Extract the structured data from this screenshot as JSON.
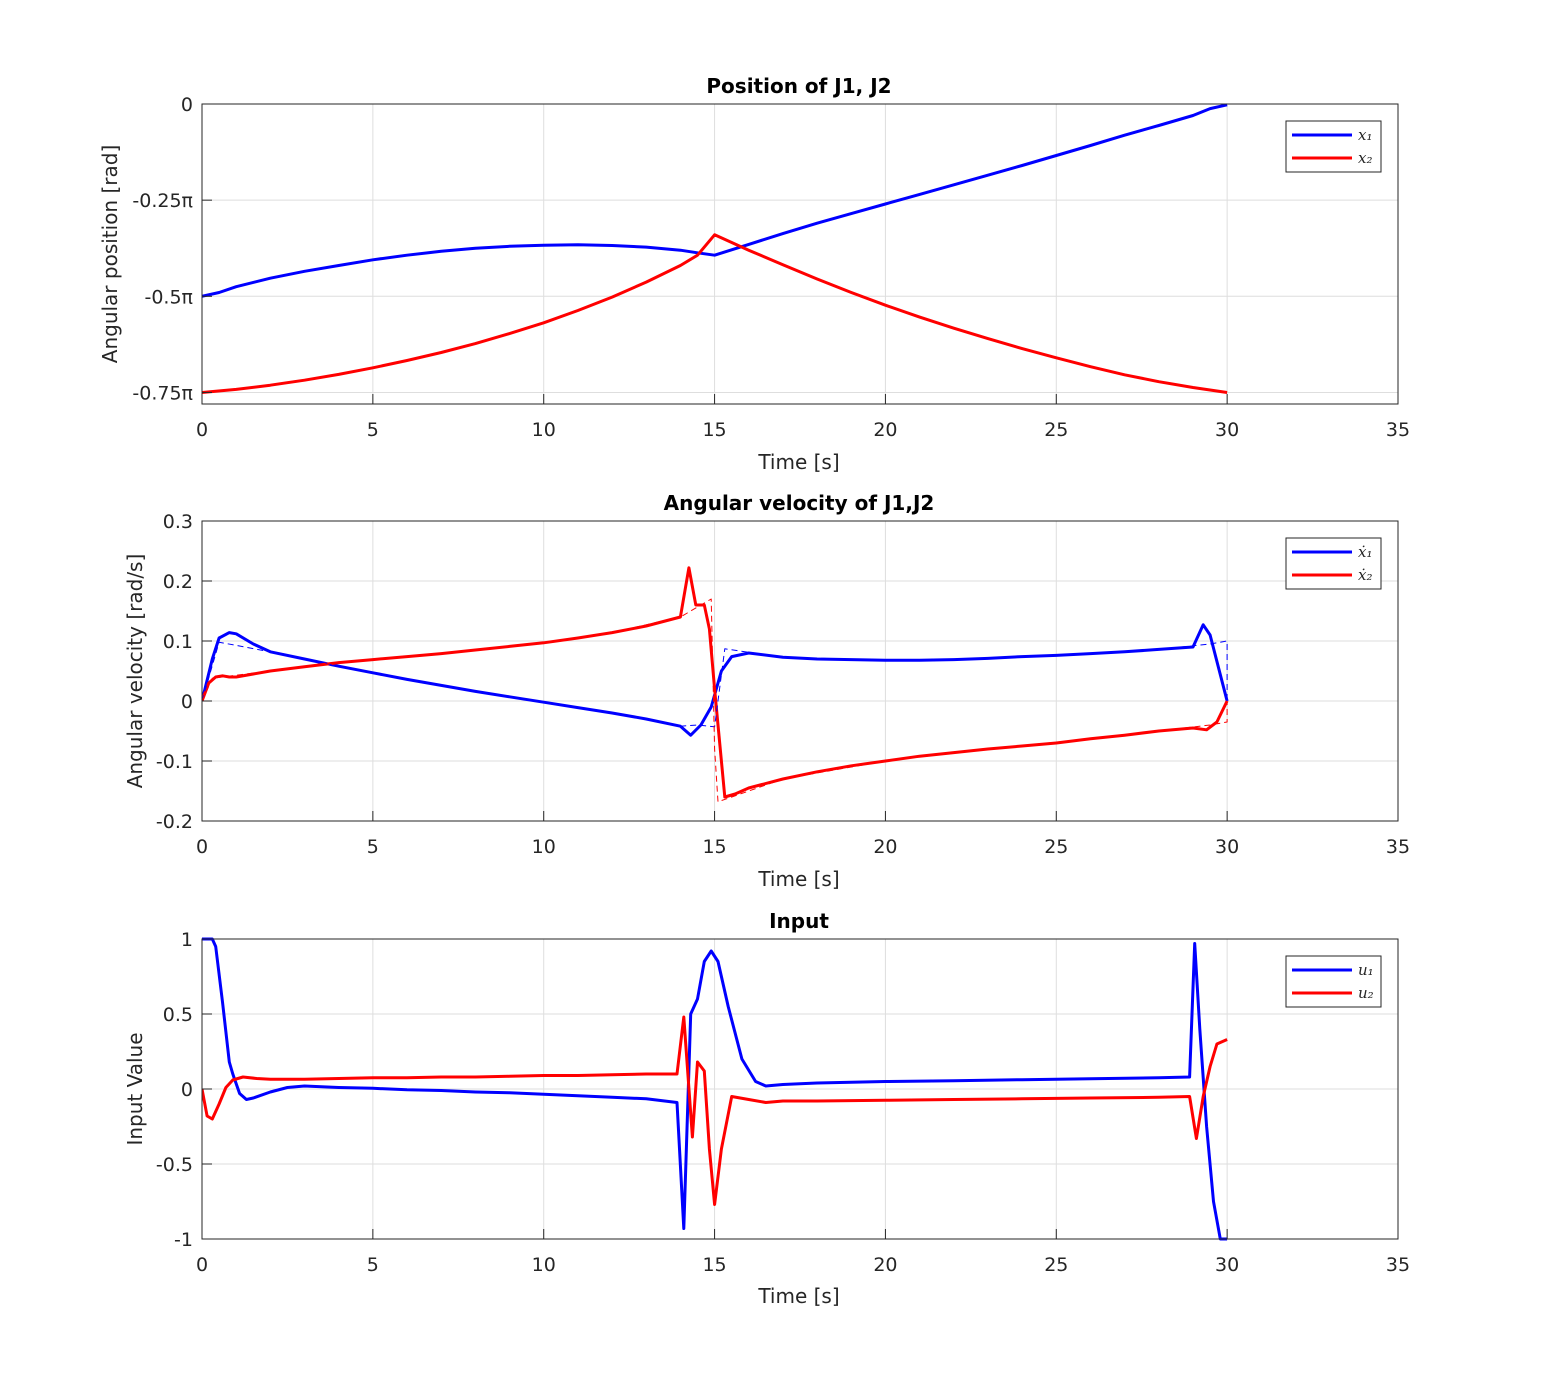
{
  "chart_data": [
    {
      "type": "line",
      "title": "Position of J1, J2",
      "xlabel": "Time [s]",
      "ylabel": "Angular position [rad]",
      "xlim": [
        0,
        35
      ],
      "ylim": [
        -0.78,
        0
      ],
      "y_unit": "pi",
      "grid": true,
      "legend_position": "top-right",
      "xticks": [
        0,
        5,
        10,
        15,
        20,
        25,
        30,
        35
      ],
      "yticks": [
        {
          "value": 0,
          "label": "0"
        },
        {
          "value": -0.25,
          "label": "-0.25π"
        },
        {
          "value": -0.5,
          "label": "-0.5π"
        },
        {
          "value": -0.75,
          "label": "-0.75π"
        }
      ],
      "series": [
        {
          "name": "x₁",
          "color": "#0000ff",
          "style": "solid",
          "x": [
            0,
            0.5,
            1,
            2,
            3,
            4,
            5,
            6,
            7,
            8,
            9,
            10,
            11,
            12,
            13,
            14,
            14.5,
            15,
            16,
            17,
            18,
            19,
            20,
            21,
            22,
            23,
            24,
            25,
            26,
            27,
            28,
            29,
            29.5,
            30
          ],
          "y": [
            -0.5,
            -0.49,
            -0.475,
            -0.453,
            -0.435,
            -0.42,
            -0.405,
            -0.393,
            -0.383,
            -0.375,
            -0.37,
            -0.367,
            -0.366,
            -0.368,
            -0.372,
            -0.38,
            -0.387,
            -0.393,
            -0.365,
            -0.337,
            -0.31,
            -0.285,
            -0.26,
            -0.235,
            -0.21,
            -0.185,
            -0.16,
            -0.134,
            -0.108,
            -0.081,
            -0.056,
            -0.03,
            -0.012,
            -0.002
          ]
        },
        {
          "name": "x₂",
          "color": "#ff0000",
          "style": "solid",
          "x": [
            0,
            1,
            2,
            3,
            4,
            5,
            6,
            7,
            8,
            9,
            10,
            11,
            12,
            13,
            14,
            14.5,
            15,
            15.5,
            16,
            17,
            18,
            19,
            20,
            21,
            22,
            23,
            24,
            25,
            26,
            27,
            28,
            29,
            30
          ],
          "y": [
            -0.75,
            -0.742,
            -0.731,
            -0.718,
            -0.703,
            -0.686,
            -0.667,
            -0.646,
            -0.623,
            -0.597,
            -0.569,
            -0.537,
            -0.502,
            -0.463,
            -0.42,
            -0.393,
            -0.34,
            -0.36,
            -0.38,
            -0.418,
            -0.455,
            -0.49,
            -0.523,
            -0.554,
            -0.583,
            -0.61,
            -0.636,
            -0.66,
            -0.683,
            -0.704,
            -0.722,
            -0.737,
            -0.75
          ]
        }
      ]
    },
    {
      "type": "line",
      "title": "Angular velocity of J1,J2",
      "xlabel": "Time [s]",
      "ylabel": "Angular velocity [rad/s]",
      "xlim": [
        0,
        35
      ],
      "ylim": [
        -0.2,
        0.3
      ],
      "grid": true,
      "legend_position": "top-right",
      "xticks": [
        0,
        5,
        10,
        15,
        20,
        25,
        30,
        35
      ],
      "yticks": [
        {
          "value": 0.3,
          "label": "0.3"
        },
        {
          "value": 0.2,
          "label": "0.2"
        },
        {
          "value": 0.1,
          "label": "0.1"
        },
        {
          "value": 0,
          "label": "0"
        },
        {
          "value": -0.1,
          "label": "-0.1"
        },
        {
          "value": -0.2,
          "label": "-0.2"
        }
      ],
      "series": [
        {
          "name": "ẋ₁",
          "color": "#0000ff",
          "style": "solid",
          "x": [
            0,
            0.3,
            0.5,
            0.8,
            1,
            1.5,
            2,
            3,
            4,
            5,
            6,
            7,
            8,
            9,
            10,
            11,
            12,
            13,
            14,
            14.3,
            14.6,
            14.9,
            15.2,
            15.5,
            16,
            17,
            18,
            19,
            20,
            21,
            22,
            23,
            24,
            25,
            26,
            27,
            28,
            29,
            29.3,
            29.5,
            30
          ],
          "y": [
            0,
            0.07,
            0.105,
            0.114,
            0.112,
            0.095,
            0.082,
            0.07,
            0.058,
            0.047,
            0.036,
            0.026,
            0.016,
            0.007,
            -0.002,
            -0.011,
            -0.02,
            -0.03,
            -0.042,
            -0.057,
            -0.04,
            -0.01,
            0.05,
            0.074,
            0.08,
            0.073,
            0.07,
            0.069,
            0.068,
            0.068,
            0.069,
            0.071,
            0.074,
            0.076,
            0.079,
            0.082,
            0.086,
            0.09,
            0.127,
            0.11,
            0
          ]
        },
        {
          "name": "ẋ₂",
          "color": "#ff0000",
          "style": "solid",
          "x": [
            0,
            0.2,
            0.4,
            0.6,
            0.8,
            1,
            2,
            3,
            4,
            5,
            6,
            7,
            8,
            9,
            10,
            11,
            12,
            13,
            14,
            14.25,
            14.45,
            14.7,
            14.85,
            15,
            15.3,
            15.6,
            16,
            17,
            18,
            19,
            20,
            21,
            22,
            23,
            24,
            25,
            26,
            27,
            28,
            29,
            29.4,
            29.7,
            30
          ],
          "y": [
            0,
            0.03,
            0.04,
            0.042,
            0.04,
            0.04,
            0.05,
            0.057,
            0.064,
            0.069,
            0.074,
            0.079,
            0.085,
            0.091,
            0.097,
            0.105,
            0.114,
            0.125,
            0.14,
            0.222,
            0.16,
            0.16,
            0.12,
            0.02,
            -0.16,
            -0.155,
            -0.145,
            -0.13,
            -0.118,
            -0.108,
            -0.1,
            -0.092,
            -0.086,
            -0.08,
            -0.075,
            -0.07,
            -0.063,
            -0.057,
            -0.05,
            -0.045,
            -0.048,
            -0.035,
            0
          ]
        },
        {
          "name": "",
          "color": "#0000ff",
          "style": "dashed",
          "x": [
            0,
            0.5,
            2,
            4,
            6,
            8,
            10,
            12,
            14,
            14.5,
            15,
            15.3,
            17,
            20,
            23,
            26,
            28,
            29.5,
            30,
            30
          ],
          "y": [
            0,
            0.098,
            0.082,
            0.058,
            0.036,
            0.016,
            -0.002,
            -0.02,
            -0.042,
            -0.04,
            -0.043,
            0.087,
            0.073,
            0.068,
            0.071,
            0.079,
            0.086,
            0.095,
            0.1,
            0
          ]
        },
        {
          "name": "",
          "color": "#ff0000",
          "style": "dashed",
          "x": [
            0,
            0.3,
            2,
            4,
            6,
            8,
            10,
            12,
            14,
            14.3,
            14.9,
            15,
            15.1,
            17,
            20,
            23,
            26,
            28,
            29.5,
            30,
            30
          ],
          "y": [
            0,
            0.038,
            0.05,
            0.064,
            0.074,
            0.085,
            0.097,
            0.114,
            0.14,
            0.15,
            0.17,
            -0.08,
            -0.168,
            -0.13,
            -0.1,
            -0.08,
            -0.063,
            -0.05,
            -0.04,
            -0.035,
            0
          ]
        }
      ]
    },
    {
      "type": "line",
      "title": "Input",
      "xlabel": "Time [s]",
      "ylabel": "Input Value",
      "xlim": [
        0,
        35
      ],
      "ylim": [
        -1,
        1
      ],
      "grid": true,
      "legend_position": "top-right",
      "xticks": [
        0,
        5,
        10,
        15,
        20,
        25,
        30,
        35
      ],
      "yticks": [
        {
          "value": 1,
          "label": "1"
        },
        {
          "value": 0.5,
          "label": "0.5"
        },
        {
          "value": 0,
          "label": "0"
        },
        {
          "value": -0.5,
          "label": "-0.5"
        },
        {
          "value": -1,
          "label": "-1"
        }
      ],
      "series": [
        {
          "name": "u₁",
          "color": "#0000ff",
          "style": "solid",
          "x": [
            0,
            0.3,
            0.4,
            0.6,
            0.8,
            0.9,
            1.1,
            1.3,
            1.5,
            2,
            2.5,
            3,
            4,
            5,
            6,
            7,
            8,
            9,
            10,
            11,
            12,
            13,
            13.9,
            14.1,
            14.3,
            14.5,
            14.7,
            14.9,
            15.1,
            15.4,
            15.8,
            16.2,
            16.5,
            17,
            18,
            19,
            20,
            22,
            24,
            26,
            28,
            28.9,
            29.05,
            29.2,
            29.4,
            29.6,
            29.8,
            30
          ],
          "y": [
            1,
            1,
            0.95,
            0.58,
            0.18,
            0.1,
            -0.03,
            -0.07,
            -0.06,
            -0.02,
            0.01,
            0.02,
            0.01,
            0.005,
            -0.005,
            -0.01,
            -0.02,
            -0.025,
            -0.035,
            -0.045,
            -0.055,
            -0.065,
            -0.09,
            -0.93,
            0.5,
            0.6,
            0.85,
            0.92,
            0.85,
            0.55,
            0.2,
            0.05,
            0.02,
            0.03,
            0.04,
            0.045,
            0.05,
            0.055,
            0.062,
            0.068,
            0.075,
            0.08,
            0.97,
            0.4,
            -0.25,
            -0.75,
            -1,
            -1
          ]
        },
        {
          "name": "u₂",
          "color": "#ff0000",
          "style": "solid",
          "x": [
            0,
            0.15,
            0.3,
            0.5,
            0.7,
            0.9,
            1.2,
            1.6,
            2,
            3,
            4,
            5,
            6,
            7,
            8,
            9,
            10,
            11,
            12,
            13,
            13.9,
            14.1,
            14.35,
            14.5,
            14.7,
            14.85,
            15,
            15.2,
            15.5,
            16,
            16.5,
            17,
            18,
            20,
            22,
            24,
            26,
            28,
            28.9,
            29.1,
            29.3,
            29.5,
            29.7,
            30
          ],
          "y": [
            0,
            -0.18,
            -0.2,
            -0.1,
            0.01,
            0.06,
            0.08,
            0.07,
            0.065,
            0.065,
            0.07,
            0.075,
            0.075,
            0.08,
            0.08,
            0.085,
            0.09,
            0.09,
            0.095,
            0.1,
            0.1,
            0.48,
            -0.32,
            0.18,
            0.12,
            -0.4,
            -0.77,
            -0.4,
            -0.05,
            -0.07,
            -0.09,
            -0.08,
            -0.08,
            -0.075,
            -0.07,
            -0.065,
            -0.06,
            -0.055,
            -0.05,
            -0.33,
            -0.05,
            0.15,
            0.3,
            0.33
          ]
        }
      ]
    }
  ]
}
